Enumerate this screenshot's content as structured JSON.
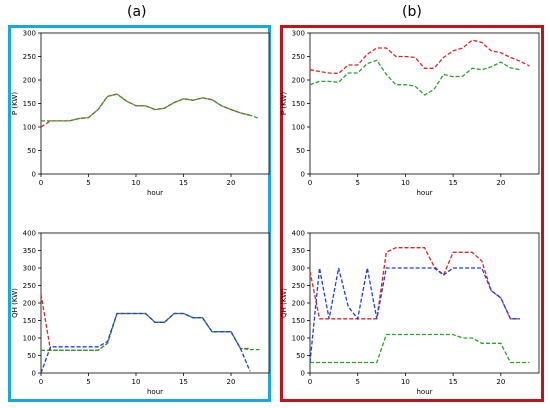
{
  "panel_labels": {
    "a": "(a)",
    "b": "(b)"
  },
  "colors": {
    "frame_a": "#1aa7df",
    "frame_b": "#c0141c"
  },
  "chart_data": [
    {
      "id": "a-top",
      "type": "line",
      "xlabel": "hour",
      "ylabel": "P (KW)",
      "xlim": [
        0,
        24
      ],
      "ylim": [
        0,
        300
      ],
      "xticks": [
        0,
        5,
        10,
        15,
        20
      ],
      "yticks": [
        0,
        50,
        100,
        150,
        200,
        250,
        300
      ],
      "grid": false,
      "series": [
        {
          "color": "#d62728",
          "style": "dashed",
          "x": [
            0,
            1,
            2,
            3,
            4,
            5,
            6,
            7,
            8,
            9,
            10,
            11,
            12,
            13,
            14,
            15,
            16,
            17,
            18,
            19,
            20,
            21,
            22
          ],
          "y": [
            100,
            113,
            113,
            113,
            118,
            120,
            137,
            165,
            170,
            155,
            145,
            145,
            137,
            140,
            152,
            160,
            157,
            162,
            158,
            145,
            137,
            130,
            125
          ]
        },
        {
          "color": "#2ca02c",
          "style": "dashed",
          "x": [
            0,
            1,
            2,
            3,
            4,
            5,
            6,
            7,
            8,
            9,
            10,
            11,
            12,
            13,
            14,
            15,
            16,
            17,
            18,
            19,
            20,
            21,
            22,
            23
          ],
          "y": [
            113,
            113,
            113,
            113,
            118,
            120,
            137,
            165,
            170,
            155,
            145,
            145,
            137,
            140,
            152,
            160,
            157,
            162,
            158,
            145,
            137,
            130,
            125,
            118
          ]
        }
      ]
    },
    {
      "id": "a-bottom",
      "type": "line",
      "xlabel": "hour",
      "ylabel": "QH (KW)",
      "xlim": [
        0,
        24
      ],
      "ylim": [
        0,
        400
      ],
      "xticks": [
        0,
        5,
        10,
        15,
        20
      ],
      "yticks": [
        0,
        50,
        100,
        150,
        200,
        250,
        300,
        350,
        400
      ],
      "grid": false,
      "series": [
        {
          "color": "#d62728",
          "style": "dashed",
          "x": [
            0,
            1,
            2,
            3,
            4,
            5,
            6,
            7,
            8,
            9,
            10,
            11,
            12,
            13,
            14,
            15,
            16,
            17,
            18,
            19,
            20,
            21,
            22
          ],
          "y": [
            225,
            65,
            65,
            65,
            65,
            65,
            65,
            85,
            170,
            170,
            170,
            170,
            145,
            145,
            170,
            170,
            158,
            158,
            118,
            118,
            118,
            70,
            70
          ]
        },
        {
          "color": "#2ca02c",
          "style": "dashed",
          "x": [
            0,
            1,
            2,
            3,
            4,
            5,
            6,
            7,
            8,
            9,
            10,
            11,
            12,
            13,
            14,
            15,
            16,
            17,
            18,
            19,
            20,
            21,
            22,
            23
          ],
          "y": [
            65,
            65,
            65,
            65,
            65,
            65,
            65,
            85,
            170,
            170,
            170,
            170,
            145,
            145,
            170,
            170,
            158,
            158,
            118,
            118,
            118,
            70,
            67,
            67
          ]
        },
        {
          "color": "#1f3fd6",
          "style": "dashed",
          "x": [
            0,
            1,
            2,
            3,
            4,
            5,
            6,
            7,
            8,
            9,
            10,
            11,
            12,
            13,
            14,
            15,
            16,
            17,
            18,
            19,
            20,
            21,
            22
          ],
          "y": [
            0,
            75,
            75,
            75,
            75,
            75,
            75,
            90,
            170,
            170,
            170,
            170,
            145,
            145,
            170,
            170,
            158,
            158,
            118,
            118,
            118,
            70,
            5
          ]
        }
      ]
    },
    {
      "id": "b-top",
      "type": "line",
      "xlabel": "hour",
      "ylabel": "P (KW)",
      "xlim": [
        0,
        24
      ],
      "ylim": [
        0,
        300
      ],
      "xticks": [
        0,
        5,
        10,
        15,
        20
      ],
      "yticks": [
        0,
        50,
        100,
        150,
        200,
        250,
        300
      ],
      "grid": false,
      "series": [
        {
          "color": "#d62728",
          "style": "dashed",
          "x": [
            0,
            1,
            2,
            3,
            4,
            5,
            6,
            7,
            8,
            9,
            10,
            11,
            12,
            13,
            14,
            15,
            16,
            17,
            18,
            19,
            20,
            21,
            22,
            23
          ],
          "y": [
            222,
            218,
            215,
            214,
            232,
            232,
            255,
            268,
            268,
            250,
            250,
            248,
            225,
            225,
            248,
            262,
            268,
            285,
            280,
            262,
            258,
            248,
            240,
            230
          ]
        },
        {
          "color": "#2ca02c",
          "style": "dashed",
          "x": [
            0,
            1,
            2,
            3,
            4,
            5,
            6,
            7,
            8,
            9,
            10,
            11,
            12,
            13,
            14,
            15,
            16,
            17,
            18,
            19,
            20,
            21,
            22
          ],
          "y": [
            190,
            197,
            197,
            195,
            215,
            215,
            235,
            242,
            212,
            190,
            190,
            187,
            168,
            180,
            212,
            207,
            208,
            225,
            222,
            228,
            238,
            226,
            222
          ]
        }
      ]
    },
    {
      "id": "b-bottom",
      "type": "line",
      "xlabel": "hour",
      "ylabel": "QH (KW)",
      "xlim": [
        0,
        24
      ],
      "ylim": [
        0,
        400
      ],
      "xticks": [
        0,
        5,
        10,
        15,
        20
      ],
      "yticks": [
        0,
        50,
        100,
        150,
        200,
        250,
        300,
        350,
        400
      ],
      "grid": false,
      "series": [
        {
          "color": "#d62728",
          "style": "dashed",
          "x": [
            0,
            1,
            2,
            3,
            4,
            5,
            6,
            7,
            8,
            9,
            10,
            11,
            12,
            13,
            14,
            15,
            16,
            17,
            18,
            19,
            20,
            21,
            22
          ],
          "y": [
            290,
            155,
            155,
            155,
            155,
            155,
            155,
            155,
            345,
            358,
            358,
            358,
            358,
            305,
            280,
            345,
            345,
            345,
            320,
            235,
            215,
            155,
            155
          ]
        },
        {
          "color": "#2ca02c",
          "style": "dashed",
          "x": [
            0,
            1,
            2,
            3,
            4,
            5,
            6,
            7,
            8,
            9,
            10,
            11,
            12,
            13,
            14,
            15,
            16,
            17,
            18,
            19,
            20,
            21,
            22,
            23
          ],
          "y": [
            30,
            30,
            30,
            30,
            30,
            30,
            30,
            30,
            110,
            110,
            110,
            110,
            110,
            110,
            110,
            110,
            100,
            100,
            85,
            85,
            85,
            30,
            30,
            30
          ]
        },
        {
          "color": "#1f3fd6",
          "style": "dashed",
          "x": [
            0,
            1,
            2,
            3,
            4,
            5,
            6,
            7,
            8,
            9,
            10,
            11,
            12,
            13,
            14,
            15,
            16,
            17,
            18,
            19,
            20,
            21,
            22
          ],
          "y": [
            30,
            300,
            155,
            300,
            190,
            155,
            300,
            155,
            300,
            300,
            300,
            300,
            300,
            300,
            280,
            300,
            300,
            300,
            300,
            235,
            215,
            155,
            155
          ]
        }
      ]
    }
  ]
}
